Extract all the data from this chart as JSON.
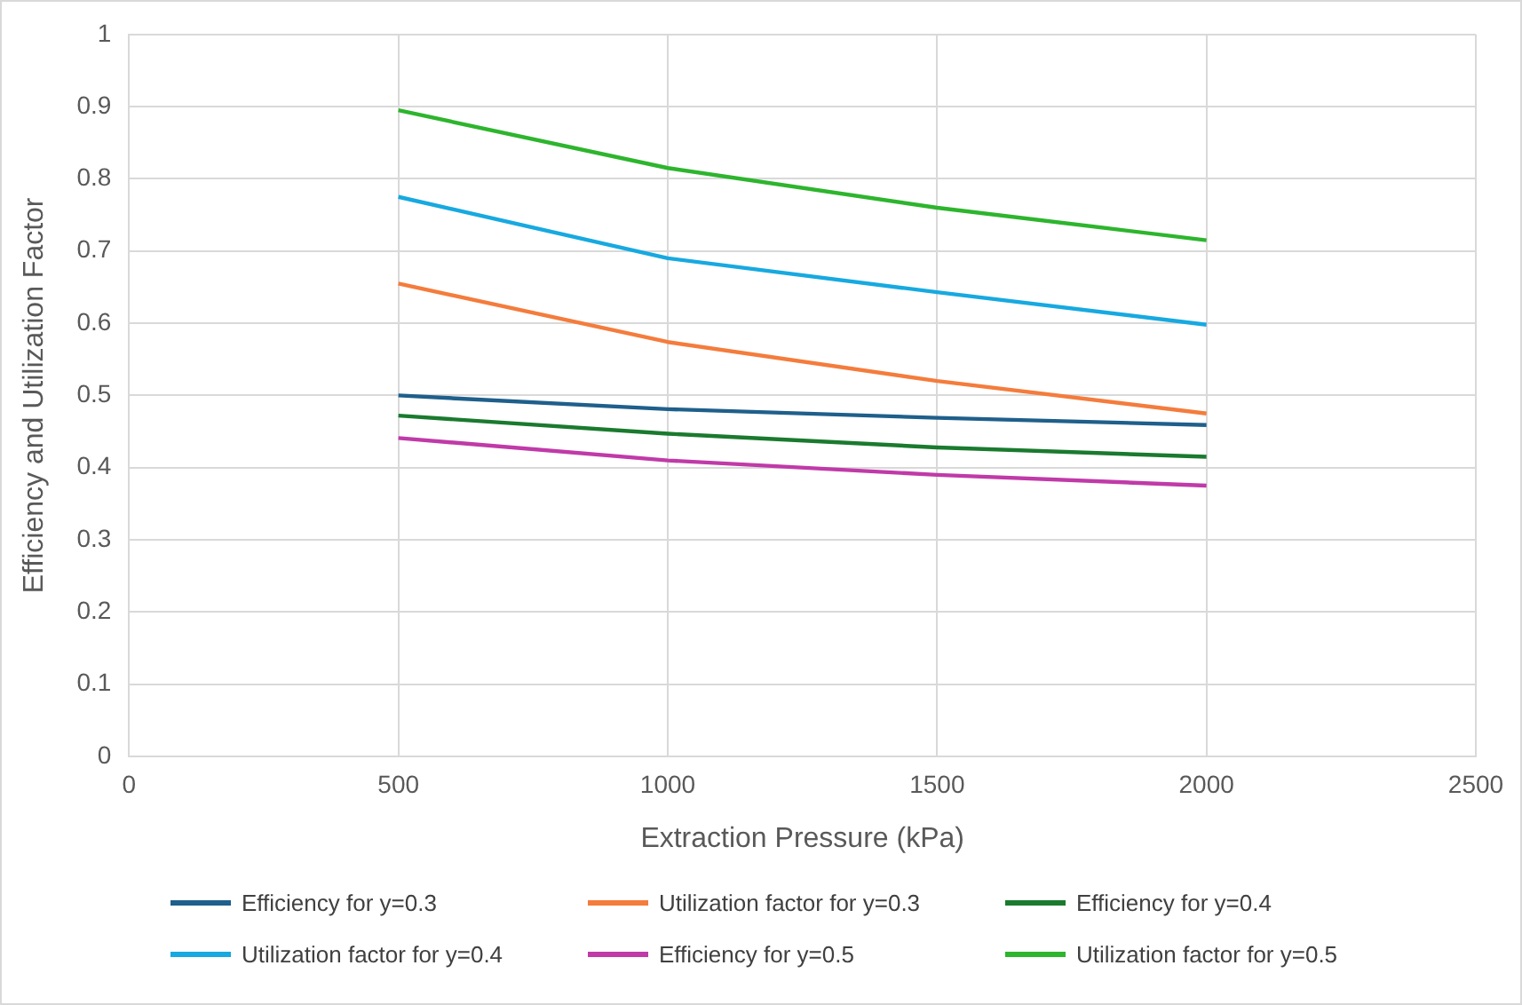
{
  "chart_data": {
    "type": "line",
    "xlabel": "Extraction Pressure (kPa)",
    "ylabel": "Efficiency and Utilization Factor",
    "x": [
      500,
      1000,
      1500,
      2000
    ],
    "series": [
      {
        "name": "Efficiency for y=0.3",
        "color": "#1f5f8b",
        "values": [
          0.5,
          0.481,
          0.469,
          0.459
        ]
      },
      {
        "name": "Utilization factor for y=0.3",
        "color": "#f47c3c",
        "values": [
          0.655,
          0.574,
          0.52,
          0.475
        ]
      },
      {
        "name": "Efficiency for y=0.4",
        "color": "#1a7a2e",
        "values": [
          0.472,
          0.447,
          0.428,
          0.415
        ]
      },
      {
        "name": "Utilization factor for y=0.4",
        "color": "#17a9e0",
        "values": [
          0.775,
          0.69,
          0.643,
          0.598
        ]
      },
      {
        "name": "Efficiency for y=0.5",
        "color": "#c03aa8",
        "values": [
          0.441,
          0.41,
          0.39,
          0.375
        ]
      },
      {
        "name": "Utilization factor for y=0.5",
        "color": "#2db52d",
        "values": [
          0.895,
          0.815,
          0.76,
          0.715
        ]
      }
    ],
    "xlim": [
      0,
      2500
    ],
    "xticks": [
      0,
      500,
      1000,
      1500,
      2000,
      2500
    ],
    "ylim": [
      0,
      1
    ],
    "yticks": [
      0,
      0.1,
      0.2,
      0.3,
      0.4,
      0.5,
      0.6,
      0.7,
      0.8,
      0.9,
      1
    ],
    "grid": true,
    "legend": "bottom",
    "marker": "none",
    "line_style": "solid"
  }
}
